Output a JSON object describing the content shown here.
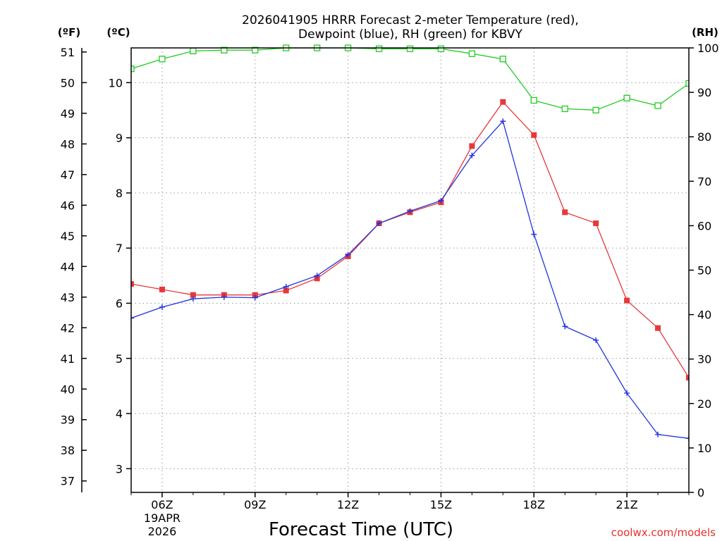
{
  "chart_data": {
    "type": "line",
    "title_line1": "2026041905 HRRR Forecast 2-meter Temperature (red),",
    "title_line2": "Dewpoint (blue), RH (green) for KBVY",
    "xlabel": "Forecast Time (UTC)",
    "credit": "coolwx.com/models",
    "axis_units": {
      "left_outer": "(ºF)",
      "left_inner": "(ºC)",
      "right": "(RH)"
    },
    "x_hours": [
      5,
      6,
      7,
      8,
      9,
      10,
      11,
      12,
      13,
      14,
      15,
      16,
      17,
      18,
      19,
      20,
      21,
      22,
      23
    ],
    "xlim": [
      5,
      23
    ],
    "x_ticks": [
      {
        "hour": 6,
        "label": "06Z",
        "sub1": "19APR",
        "sub2": "2026"
      },
      {
        "hour": 9,
        "label": "09Z"
      },
      {
        "hour": 12,
        "label": "12Z"
      },
      {
        "hour": 15,
        "label": "15Z"
      },
      {
        "hour": 18,
        "label": "18Z"
      },
      {
        "hour": 21,
        "label": "21Z"
      }
    ],
    "y_celsius_range": [
      2.57,
      10.63
    ],
    "y_celsius_ticks": [
      "3",
      "4",
      "5",
      "6",
      "7",
      "8",
      "9",
      "10"
    ],
    "y_fahrenheit_ticks": [
      "37",
      "38",
      "39",
      "40",
      "41",
      "42",
      "43",
      "44",
      "45",
      "46",
      "47",
      "48",
      "49",
      "50",
      "51"
    ],
    "y_rh_range": [
      0,
      100
    ],
    "y_rh_ticks": [
      "0",
      "10",
      "20",
      "30",
      "40",
      "50",
      "60",
      "70",
      "80",
      "90",
      "100"
    ],
    "series": [
      {
        "name": "Temperature",
        "units": "°C",
        "color": "#e8383a",
        "marker": "filled-square",
        "values": [
          6.35,
          6.25,
          6.15,
          6.15,
          6.15,
          6.23,
          6.45,
          6.85,
          7.45,
          7.65,
          7.83,
          8.85,
          9.65,
          9.05,
          7.65,
          7.45,
          6.05,
          5.55,
          4.65
        ]
      },
      {
        "name": "Dewpoint",
        "units": "°C",
        "color": "#2233dd",
        "marker": "plus",
        "values": [
          5.73,
          5.93,
          6.08,
          6.11,
          6.1,
          6.3,
          6.5,
          6.88,
          7.45,
          7.67,
          7.86,
          8.68,
          9.3,
          7.25,
          5.58,
          5.33,
          4.37,
          3.62,
          3.55
        ]
      },
      {
        "name": "RH",
        "units": "%",
        "color": "#22cc22",
        "marker": "open-square",
        "values": [
          95.3,
          97.5,
          99.3,
          99.5,
          99.5,
          100,
          100,
          100,
          99.8,
          99.8,
          99.8,
          98.7,
          97.5,
          88.2,
          86.3,
          86.0,
          88.7,
          87.0,
          92.0
        ]
      }
    ]
  }
}
